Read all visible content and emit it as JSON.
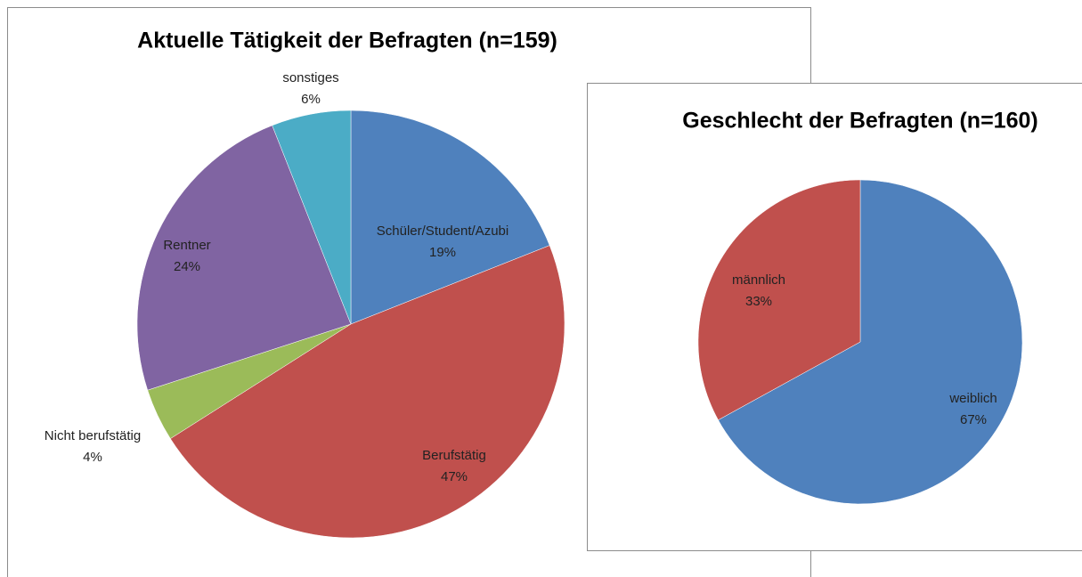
{
  "chart_data": [
    {
      "type": "pie",
      "title": "Aktuelle Tätigkeit der Befragten (n=159)",
      "categories": [
        "Schüler/Student/Azubi",
        "Berufstätig",
        "Nicht berufstätig",
        "Rentner",
        "sonstiges"
      ],
      "values": [
        19,
        47,
        4,
        24,
        6
      ],
      "value_labels": [
        "19%",
        "47%",
        "4%",
        "24%",
        "6%"
      ],
      "colors": [
        "#4f81bd",
        "#c0504d",
        "#9bbb59",
        "#8064a2",
        "#4bacc6"
      ]
    },
    {
      "type": "pie",
      "title": "Geschlecht der Befragten (n=160)",
      "categories": [
        "weiblich",
        "männlich"
      ],
      "values": [
        67,
        33
      ],
      "value_labels": [
        "67%",
        "33%"
      ],
      "colors": [
        "#4f81bd",
        "#c0504d"
      ]
    }
  ]
}
